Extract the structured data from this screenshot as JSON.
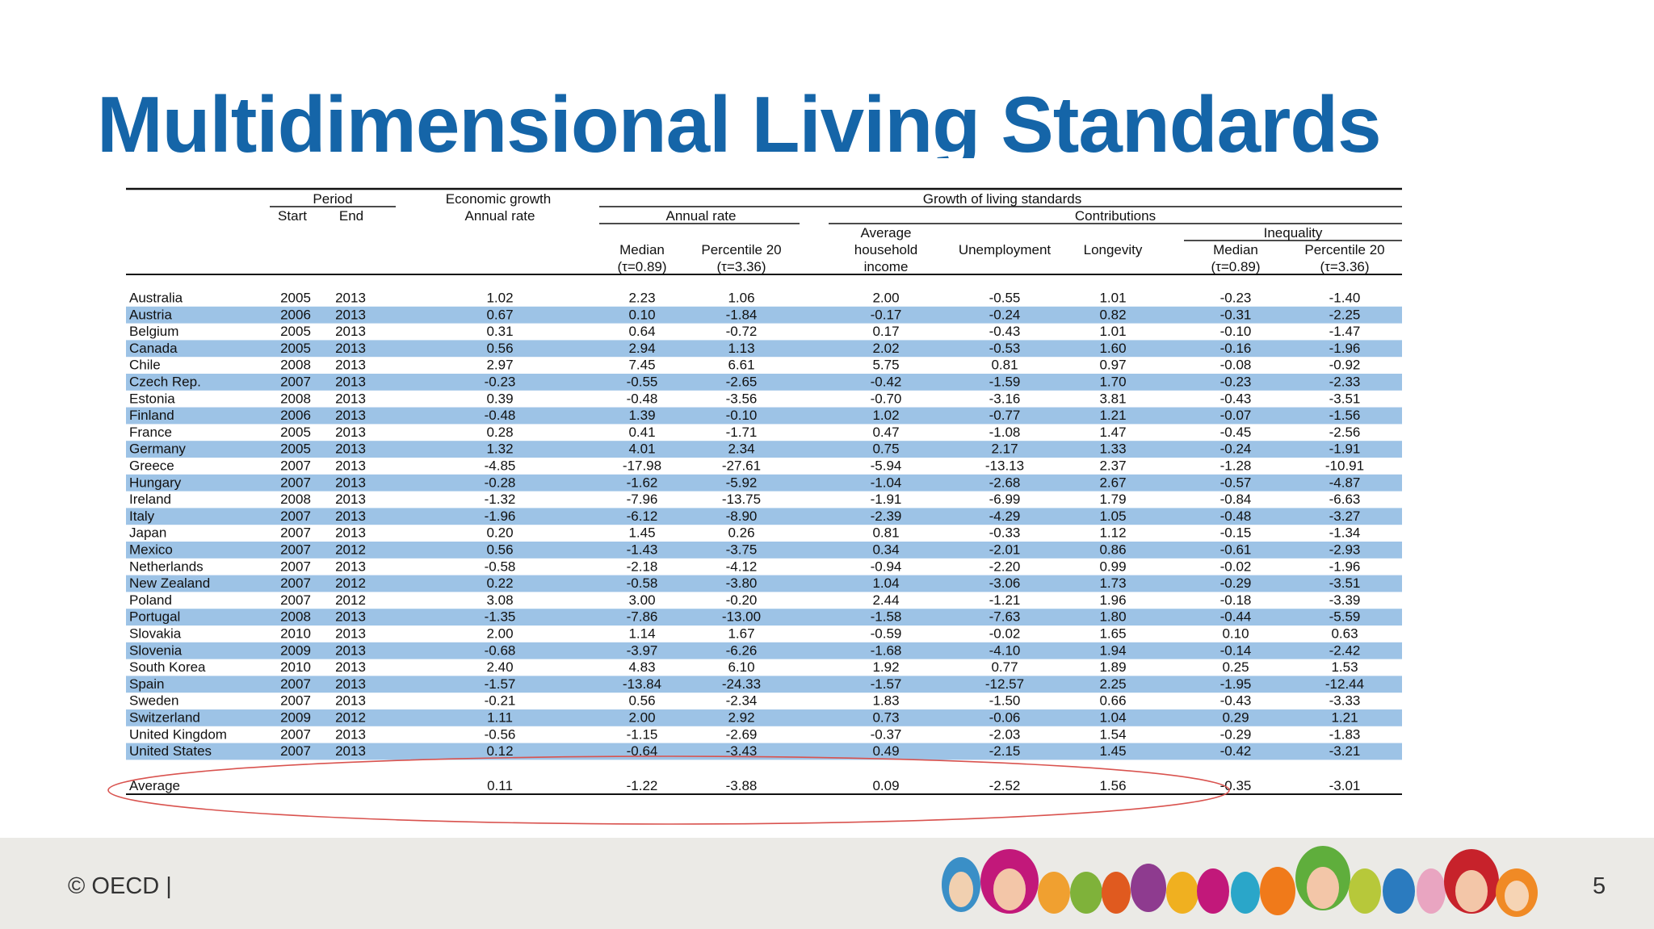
{
  "title": "Multidimensional Living Standards",
  "footer": {
    "copyright": "© OECD |",
    "page_number": "5"
  },
  "table": {
    "headers": {
      "period": "Period",
      "start": "Start",
      "end": "End",
      "econ_growth_1": "Economic growth",
      "econ_growth_2": "Annual rate",
      "growth_living": "Growth of living standards",
      "annual_rate": "Annual rate",
      "contributions": "Contributions",
      "median": "Median",
      "median_tau": "(τ=0.89)",
      "p20": "Percentile 20",
      "p20_tau": "(τ=3.36)",
      "avg_income_1": "Average",
      "avg_income_2": "household",
      "avg_income_3": "income",
      "unemployment": "Unemployment",
      "longevity": "Longevity",
      "inequality": "Inequality",
      "ineq_median": "Median",
      "ineq_median_tau": "(τ=0.89)",
      "ineq_p20": "Percentile 20",
      "ineq_p20_tau": "(τ=3.36)"
    },
    "rows": [
      [
        "Australia",
        "2005",
        "2013",
        "1.02",
        "2.23",
        "1.06",
        "2.00",
        "-0.55",
        "1.01",
        "-0.23",
        "-1.40"
      ],
      [
        "Austria",
        "2006",
        "2013",
        "0.67",
        "0.10",
        "-1.84",
        "-0.17",
        "-0.24",
        "0.82",
        "-0.31",
        "-2.25"
      ],
      [
        "Belgium",
        "2005",
        "2013",
        "0.31",
        "0.64",
        "-0.72",
        "0.17",
        "-0.43",
        "1.01",
        "-0.10",
        "-1.47"
      ],
      [
        "Canada",
        "2005",
        "2013",
        "0.56",
        "2.94",
        "1.13",
        "2.02",
        "-0.53",
        "1.60",
        "-0.16",
        "-1.96"
      ],
      [
        "Chile",
        "2008",
        "2013",
        "2.97",
        "7.45",
        "6.61",
        "5.75",
        "0.81",
        "0.97",
        "-0.08",
        "-0.92"
      ],
      [
        "Czech Rep.",
        "2007",
        "2013",
        "-0.23",
        "-0.55",
        "-2.65",
        "-0.42",
        "-1.59",
        "1.70",
        "-0.23",
        "-2.33"
      ],
      [
        "Estonia",
        "2008",
        "2013",
        "0.39",
        "-0.48",
        "-3.56",
        "-0.70",
        "-3.16",
        "3.81",
        "-0.43",
        "-3.51"
      ],
      [
        "Finland",
        "2006",
        "2013",
        "-0.48",
        "1.39",
        "-0.10",
        "1.02",
        "-0.77",
        "1.21",
        "-0.07",
        "-1.56"
      ],
      [
        "France",
        "2005",
        "2013",
        "0.28",
        "0.41",
        "-1.71",
        "0.47",
        "-1.08",
        "1.47",
        "-0.45",
        "-2.56"
      ],
      [
        "Germany",
        "2005",
        "2013",
        "1.32",
        "4.01",
        "2.34",
        "0.75",
        "2.17",
        "1.33",
        "-0.24",
        "-1.91"
      ],
      [
        "Greece",
        "2007",
        "2013",
        "-4.85",
        "-17.98",
        "-27.61",
        "-5.94",
        "-13.13",
        "2.37",
        "-1.28",
        "-10.91"
      ],
      [
        "Hungary",
        "2007",
        "2013",
        "-0.28",
        "-1.62",
        "-5.92",
        "-1.04",
        "-2.68",
        "2.67",
        "-0.57",
        "-4.87"
      ],
      [
        "Ireland",
        "2008",
        "2013",
        "-1.32",
        "-7.96",
        "-13.75",
        "-1.91",
        "-6.99",
        "1.79",
        "-0.84",
        "-6.63"
      ],
      [
        "Italy",
        "2007",
        "2013",
        "-1.96",
        "-6.12",
        "-8.90",
        "-2.39",
        "-4.29",
        "1.05",
        "-0.48",
        "-3.27"
      ],
      [
        "Japan",
        "2007",
        "2013",
        "0.20",
        "1.45",
        "0.26",
        "0.81",
        "-0.33",
        "1.12",
        "-0.15",
        "-1.34"
      ],
      [
        "Mexico",
        "2007",
        "2012",
        "0.56",
        "-1.43",
        "-3.75",
        "0.34",
        "-2.01",
        "0.86",
        "-0.61",
        "-2.93"
      ],
      [
        "Netherlands",
        "2007",
        "2013",
        "-0.58",
        "-2.18",
        "-4.12",
        "-0.94",
        "-2.20",
        "0.99",
        "-0.02",
        "-1.96"
      ],
      [
        "New Zealand",
        "2007",
        "2012",
        "0.22",
        "-0.58",
        "-3.80",
        "1.04",
        "-3.06",
        "1.73",
        "-0.29",
        "-3.51"
      ],
      [
        "Poland",
        "2007",
        "2012",
        "3.08",
        "3.00",
        "-0.20",
        "2.44",
        "-1.21",
        "1.96",
        "-0.18",
        "-3.39"
      ],
      [
        "Portugal",
        "2008",
        "2013",
        "-1.35",
        "-7.86",
        "-13.00",
        "-1.58",
        "-7.63",
        "1.80",
        "-0.44",
        "-5.59"
      ],
      [
        "Slovakia",
        "2010",
        "2013",
        "2.00",
        "1.14",
        "1.67",
        "-0.59",
        "-0.02",
        "1.65",
        "0.10",
        "0.63"
      ],
      [
        "Slovenia",
        "2009",
        "2013",
        "-0.68",
        "-3.97",
        "-6.26",
        "-1.68",
        "-4.10",
        "1.94",
        "-0.14",
        "-2.42"
      ],
      [
        "South Korea",
        "2010",
        "2013",
        "2.40",
        "4.83",
        "6.10",
        "1.92",
        "0.77",
        "1.89",
        "0.25",
        "1.53"
      ],
      [
        "Spain",
        "2007",
        "2013",
        "-1.57",
        "-13.84",
        "-24.33",
        "-1.57",
        "-12.57",
        "2.25",
        "-1.95",
        "-12.44"
      ],
      [
        "Sweden",
        "2007",
        "2013",
        "-0.21",
        "0.56",
        "-2.34",
        "1.83",
        "-1.50",
        "0.66",
        "-0.43",
        "-3.33"
      ],
      [
        "Switzerland",
        "2009",
        "2012",
        "1.11",
        "2.00",
        "2.92",
        "0.73",
        "-0.06",
        "1.04",
        "0.29",
        "1.21"
      ],
      [
        "United Kingdom",
        "2007",
        "2013",
        "-0.56",
        "-1.15",
        "-2.69",
        "-0.37",
        "-2.03",
        "1.54",
        "-0.29",
        "-1.83"
      ],
      [
        "United States",
        "2007",
        "2013",
        "0.12",
        "-0.64",
        "-3.43",
        "0.49",
        "-2.15",
        "1.45",
        "-0.42",
        "-3.21"
      ]
    ],
    "average": [
      "Average",
      "",
      "",
      "0.11",
      "-1.22",
      "-3.88",
      "0.09",
      "-2.52",
      "1.56",
      "-0.35",
      "-3.01"
    ]
  },
  "colors": {
    "title": "#1565a8",
    "stripe": "#9dc3e6",
    "highlight_ellipse": "#d9534f",
    "footer_bg": "#ebeae6"
  }
}
